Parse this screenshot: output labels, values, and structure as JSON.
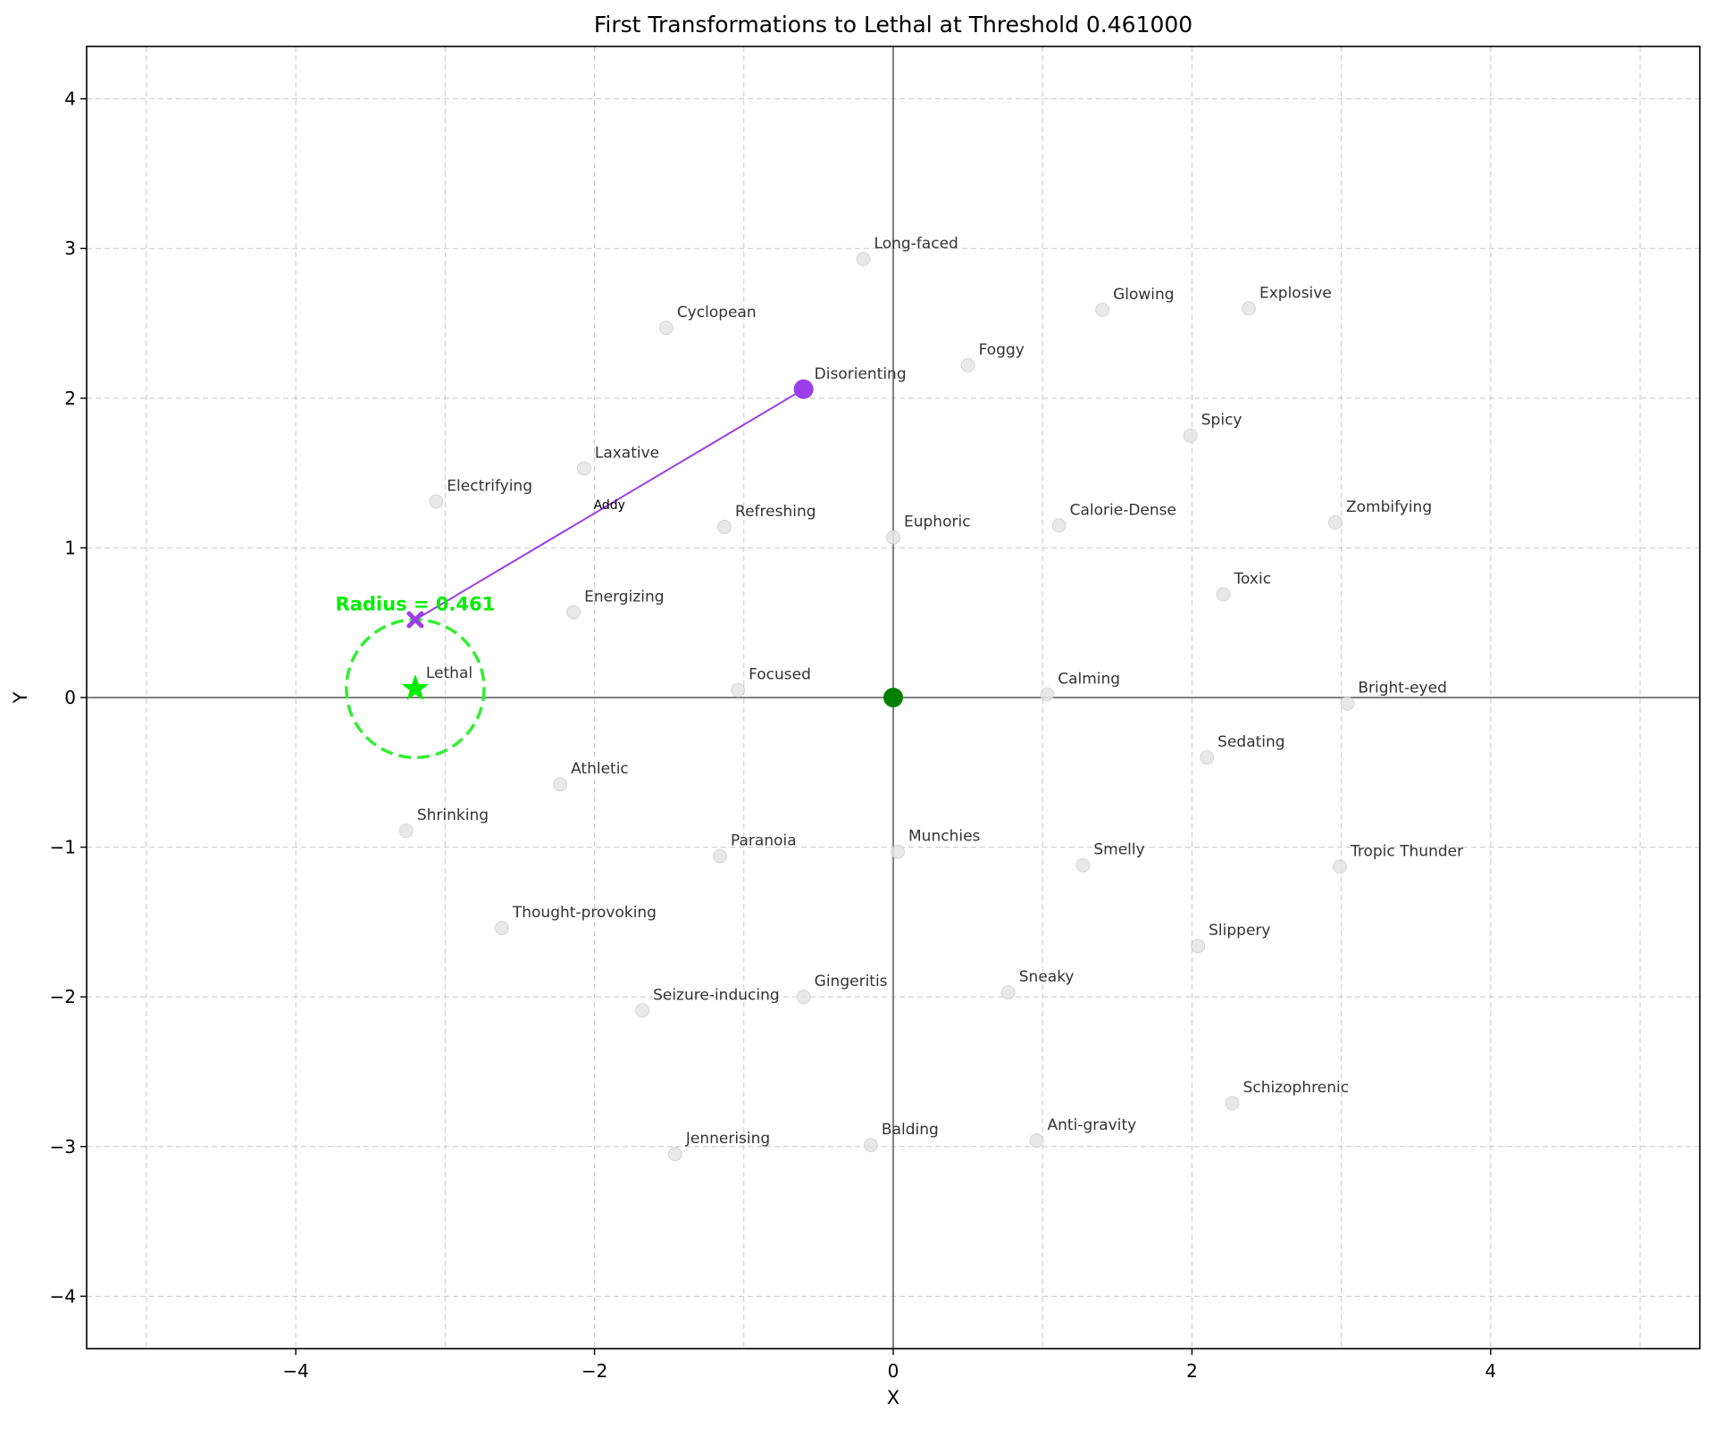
{
  "chart_data": {
    "type": "scatter",
    "title": "First Transformations to Lethal at Threshold 0.461000",
    "xlabel": "X",
    "ylabel": "Y",
    "xlim": [
      -5.4,
      5.4
    ],
    "ylim": [
      -4.35,
      4.35
    ],
    "xticks": [
      -4,
      -2,
      0,
      2,
      4
    ],
    "yticks": [
      -4,
      -3,
      -2,
      -1,
      0,
      1,
      2,
      3,
      4
    ],
    "grid": true,
    "effects": [
      {
        "name": "Long-faced",
        "x": -0.2,
        "y": 2.93
      },
      {
        "name": "Glowing",
        "x": 1.4,
        "y": 2.59
      },
      {
        "name": "Explosive",
        "x": 2.38,
        "y": 2.6
      },
      {
        "name": "Cyclopean",
        "x": -1.52,
        "y": 2.47
      },
      {
        "name": "Foggy",
        "x": 0.5,
        "y": 2.22
      },
      {
        "name": "Spicy",
        "x": 1.99,
        "y": 1.75
      },
      {
        "name": "Laxative",
        "x": -2.07,
        "y": 1.53
      },
      {
        "name": "Electrifying",
        "x": -3.06,
        "y": 1.31
      },
      {
        "name": "Refreshing",
        "x": -1.13,
        "y": 1.14
      },
      {
        "name": "Euphoric",
        "x": 0.0,
        "y": 1.07
      },
      {
        "name": "Calorie-Dense",
        "x": 1.11,
        "y": 1.15
      },
      {
        "name": "Zombifying",
        "x": 2.96,
        "y": 1.17
      },
      {
        "name": "Toxic",
        "x": 2.21,
        "y": 0.69
      },
      {
        "name": "Energizing",
        "x": -2.14,
        "y": 0.57
      },
      {
        "name": "Focused",
        "x": -1.04,
        "y": 0.05
      },
      {
        "name": "Calming",
        "x": 1.03,
        "y": 0.02
      },
      {
        "name": "Bright-eyed",
        "x": 3.04,
        "y": -0.04
      },
      {
        "name": "Sedating",
        "x": 2.1,
        "y": -0.4
      },
      {
        "name": "Athletic",
        "x": -2.23,
        "y": -0.58
      },
      {
        "name": "Shrinking",
        "x": -3.26,
        "y": -0.89
      },
      {
        "name": "Paranoia",
        "x": -1.16,
        "y": -1.06
      },
      {
        "name": "Munchies",
        "x": 0.03,
        "y": -1.03
      },
      {
        "name": "Smelly",
        "x": 1.27,
        "y": -1.12
      },
      {
        "name": "Tropic Thunder",
        "x": 2.99,
        "y": -1.13
      },
      {
        "name": "Thought-provoking",
        "x": -2.62,
        "y": -1.54
      },
      {
        "name": "Slippery",
        "x": 2.04,
        "y": -1.66
      },
      {
        "name": "Sneaky",
        "x": 0.77,
        "y": -1.97
      },
      {
        "name": "Gingeritis",
        "x": -0.6,
        "y": -2.0
      },
      {
        "name": "Seizure-inducing",
        "x": -1.68,
        "y": -2.09
      },
      {
        "name": "Schizophrenic",
        "x": 2.27,
        "y": -2.71
      },
      {
        "name": "Anti-gravity",
        "x": 0.96,
        "y": -2.96
      },
      {
        "name": "Balding",
        "x": -0.15,
        "y": -2.99
      },
      {
        "name": "Jennerising",
        "x": -1.46,
        "y": -3.05
      }
    ],
    "origin": {
      "x": 0,
      "y": 0,
      "color": "#008000"
    },
    "start_point": {
      "name": "Disorienting",
      "x": -0.6,
      "y": 2.06,
      "color": "#9b3de8"
    },
    "end_point": {
      "x": -3.2,
      "y": 0.52,
      "color": "#9b3de8"
    },
    "transformation": {
      "label": "Addy",
      "from": [
        -0.6,
        2.06
      ],
      "to": [
        -3.2,
        0.52
      ],
      "color": "#9b3de8"
    },
    "target": {
      "name": "Lethal",
      "x": -3.2,
      "y": 0.06,
      "color": "#00ee00"
    },
    "threshold_circle": {
      "center": [
        -3.2,
        0.06
      ],
      "radius": 0.461,
      "label": "Radius = 0.461",
      "color": "#33ee33"
    }
  }
}
